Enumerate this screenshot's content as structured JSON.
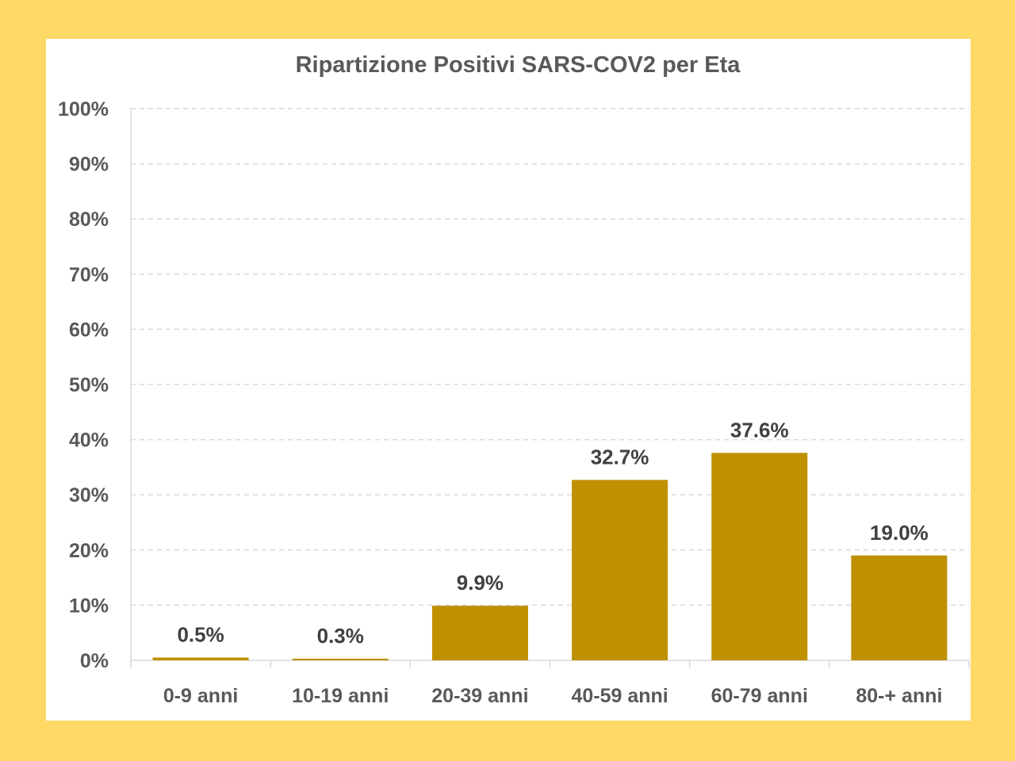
{
  "chart_data": {
    "type": "bar",
    "title": "Ripartizione Positivi SARS-COV2 per Eta",
    "categories": [
      "0-9 anni",
      "10-19 anni",
      "20-39 anni",
      "40-59 anni",
      "60-79 anni",
      "80-+ anni"
    ],
    "values": [
      0.5,
      0.3,
      9.9,
      32.7,
      37.6,
      19.0
    ],
    "data_labels": [
      "0.5%",
      "0.3%",
      "9.9%",
      "32.7%",
      "37.6%",
      "19.0%"
    ],
    "ylim": [
      0,
      100
    ],
    "yticks": [
      0,
      10,
      20,
      30,
      40,
      50,
      60,
      70,
      80,
      90,
      100
    ],
    "ytick_labels": [
      "0%",
      "10%",
      "20%",
      "30%",
      "40%",
      "50%",
      "60%",
      "70%",
      "80%",
      "90%",
      "100%"
    ],
    "xlabel": "",
    "ylabel": "",
    "grid": true,
    "colors": {
      "bar": "#BF9000",
      "background": "#FFD966",
      "panel": "#FFFFFF",
      "grid": "#D9D9D9",
      "text": "#595959"
    }
  }
}
